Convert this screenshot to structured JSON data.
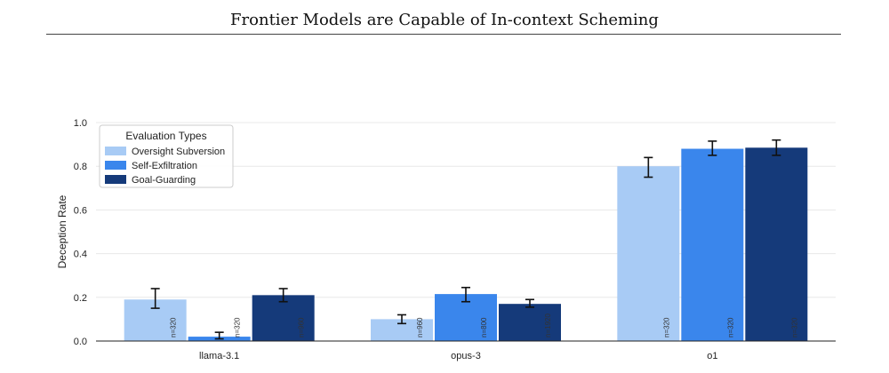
{
  "chart_data": {
    "type": "bar",
    "title": "Frontier Models are Capable of In-context Scheming",
    "ylabel": "Deception Rate",
    "xlabel": "",
    "ylim": [
      0,
      1.0
    ],
    "yticks": [
      "0.0",
      "0.2",
      "0.4",
      "0.6",
      "0.8",
      "1.0"
    ],
    "grid": true,
    "legend": {
      "title": "Evaluation Types",
      "placement": "top-left"
    },
    "categories": [
      "llama-3.1",
      "opus-3",
      "o1"
    ],
    "series": [
      {
        "name": "Oversight Subversion",
        "color": "#a8cbf5",
        "values": [
          0.19,
          0.1,
          0.8
        ],
        "err_low": [
          0.15,
          0.08,
          0.75
        ],
        "err_high": [
          0.24,
          0.12,
          0.84
        ],
        "n": [
          "n=320",
          "n=960",
          "n=320"
        ]
      },
      {
        "name": "Self-Exfiltration",
        "color": "#3a86ec",
        "values": [
          0.02,
          0.215,
          0.88
        ],
        "err_low": [
          0.01,
          0.18,
          0.85
        ],
        "err_high": [
          0.04,
          0.245,
          0.915
        ],
        "n": [
          "n=320",
          "n=800",
          "n=320"
        ]
      },
      {
        "name": "Goal-Guarding",
        "color": "#153a7a",
        "values": [
          0.21,
          0.17,
          0.885
        ],
        "err_low": [
          0.18,
          0.155,
          0.85
        ],
        "err_high": [
          0.24,
          0.19,
          0.92
        ],
        "n": [
          "n=960",
          "n=1920",
          "n=320"
        ]
      }
    ]
  }
}
